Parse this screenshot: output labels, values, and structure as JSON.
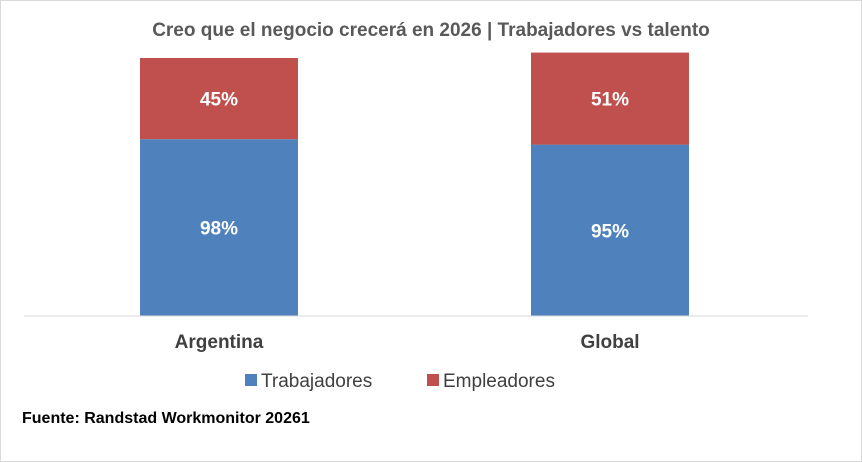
{
  "chart_data": {
    "type": "bar",
    "stacked": true,
    "title": "Creo que el negocio crecerá en 2026 | Trabajadores vs talento",
    "categories": [
      "Argentina",
      "Global"
    ],
    "series": [
      {
        "name": "Trabajadores",
        "values": [
          98,
          95
        ],
        "labels": [
          "98%",
          "95%"
        ],
        "color": "#4f81bd"
      },
      {
        "name": "Empleadores",
        "values": [
          45,
          51
        ],
        "labels": [
          "45%",
          "51%"
        ],
        "color": "#c0504d"
      }
    ],
    "legend_position": "bottom",
    "grid": false,
    "ylim": [
      0,
      143
    ]
  },
  "source": "Fuente: Randstad Workmonitor 20261"
}
